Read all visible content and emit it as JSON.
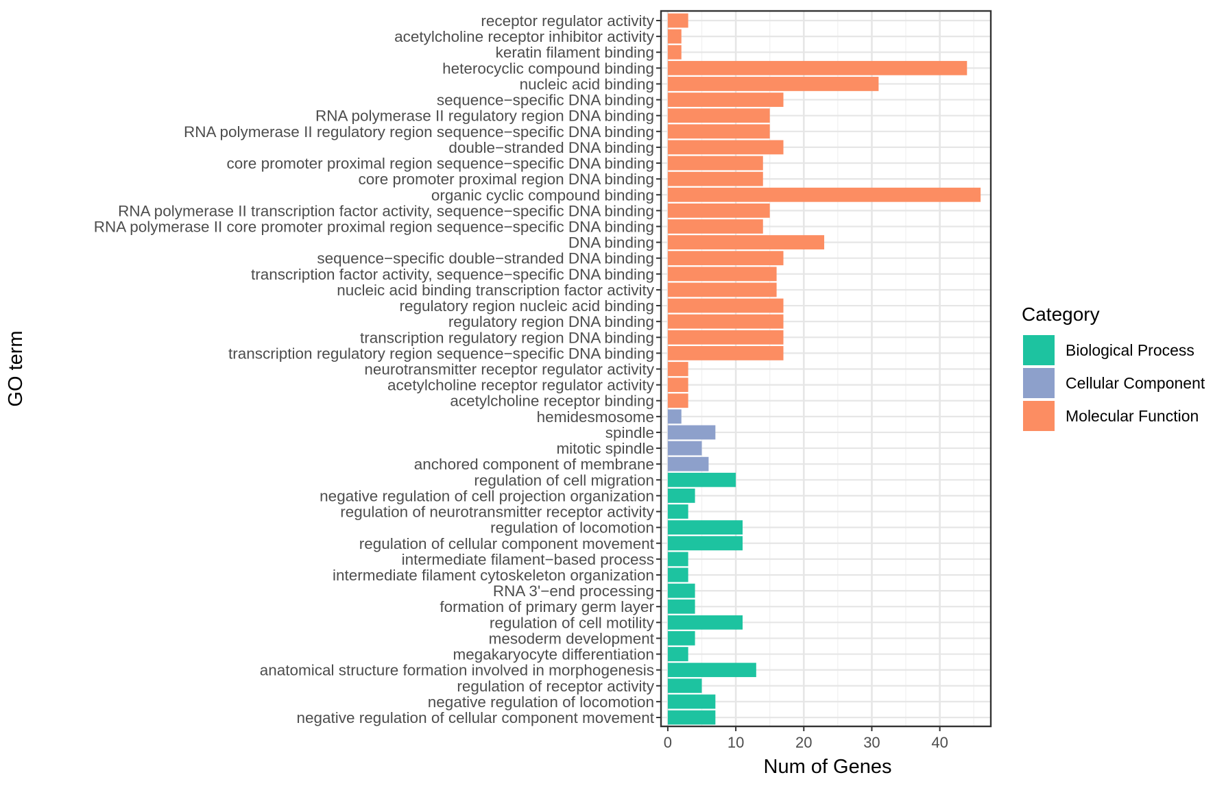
{
  "chart_data": {
    "type": "bar",
    "orientation": "horizontal",
    "xlabel": "Num of Genes",
    "ylabel": "GO term",
    "xlim": [
      -1,
      47.5
    ],
    "xticks": [
      0,
      10,
      20,
      30,
      40
    ],
    "grid": true,
    "legend": {
      "title": "Category",
      "position": "right",
      "entries": [
        {
          "label": "Biological Process",
          "color": "#1dc3a0"
        },
        {
          "label": "Cellular Component",
          "color": "#8da0cb"
        },
        {
          "label": "Molecular Function",
          "color": "#fc8d62"
        }
      ]
    },
    "bars": [
      {
        "term": "receptor regulator activity",
        "value": 3,
        "category": "Molecular Function"
      },
      {
        "term": "acetylcholine receptor inhibitor activity",
        "value": 2,
        "category": "Molecular Function"
      },
      {
        "term": "keratin filament binding",
        "value": 2,
        "category": "Molecular Function"
      },
      {
        "term": "heterocyclic compound binding",
        "value": 44,
        "category": "Molecular Function"
      },
      {
        "term": "nucleic acid binding",
        "value": 31,
        "category": "Molecular Function"
      },
      {
        "term": "sequence−specific DNA binding",
        "value": 17,
        "category": "Molecular Function"
      },
      {
        "term": "RNA polymerase II regulatory region DNA binding",
        "value": 15,
        "category": "Molecular Function"
      },
      {
        "term": "RNA polymerase II regulatory region sequence−specific DNA binding",
        "value": 15,
        "category": "Molecular Function"
      },
      {
        "term": "double−stranded DNA binding",
        "value": 17,
        "category": "Molecular Function"
      },
      {
        "term": "core promoter proximal region sequence−specific DNA binding",
        "value": 14,
        "category": "Molecular Function"
      },
      {
        "term": "core promoter proximal region DNA binding",
        "value": 14,
        "category": "Molecular Function"
      },
      {
        "term": "organic cyclic compound binding",
        "value": 46,
        "category": "Molecular Function"
      },
      {
        "term": "RNA polymerase II transcription factor activity, sequence−specific DNA binding",
        "value": 15,
        "category": "Molecular Function"
      },
      {
        "term": "RNA polymerase II core promoter proximal region sequence−specific DNA binding",
        "value": 14,
        "category": "Molecular Function"
      },
      {
        "term": "DNA binding",
        "value": 23,
        "category": "Molecular Function"
      },
      {
        "term": "sequence−specific double−stranded DNA binding",
        "value": 17,
        "category": "Molecular Function"
      },
      {
        "term": "transcription factor activity, sequence−specific DNA binding",
        "value": 16,
        "category": "Molecular Function"
      },
      {
        "term": "nucleic acid binding transcription factor activity",
        "value": 16,
        "category": "Molecular Function"
      },
      {
        "term": "regulatory region nucleic acid binding",
        "value": 17,
        "category": "Molecular Function"
      },
      {
        "term": "regulatory region DNA binding",
        "value": 17,
        "category": "Molecular Function"
      },
      {
        "term": "transcription regulatory region DNA binding",
        "value": 17,
        "category": "Molecular Function"
      },
      {
        "term": "transcription regulatory region sequence−specific DNA binding",
        "value": 17,
        "category": "Molecular Function"
      },
      {
        "term": "neurotransmitter receptor regulator activity",
        "value": 3,
        "category": "Molecular Function"
      },
      {
        "term": "acetylcholine receptor regulator activity",
        "value": 3,
        "category": "Molecular Function"
      },
      {
        "term": "acetylcholine receptor binding",
        "value": 3,
        "category": "Molecular Function"
      },
      {
        "term": "hemidesmosome",
        "value": 2,
        "category": "Cellular Component"
      },
      {
        "term": "spindle",
        "value": 7,
        "category": "Cellular Component"
      },
      {
        "term": "mitotic spindle",
        "value": 5,
        "category": "Cellular Component"
      },
      {
        "term": "anchored component of membrane",
        "value": 6,
        "category": "Cellular Component"
      },
      {
        "term": "regulation of cell migration",
        "value": 10,
        "category": "Biological Process"
      },
      {
        "term": "negative regulation of cell projection organization",
        "value": 4,
        "category": "Biological Process"
      },
      {
        "term": "regulation of neurotransmitter receptor activity",
        "value": 3,
        "category": "Biological Process"
      },
      {
        "term": "regulation of locomotion",
        "value": 11,
        "category": "Biological Process"
      },
      {
        "term": "regulation of cellular component movement",
        "value": 11,
        "category": "Biological Process"
      },
      {
        "term": "intermediate filament−based process",
        "value": 3,
        "category": "Biological Process"
      },
      {
        "term": "intermediate filament cytoskeleton organization",
        "value": 3,
        "category": "Biological Process"
      },
      {
        "term": "RNA 3'−end processing",
        "value": 4,
        "category": "Biological Process"
      },
      {
        "term": "formation of primary germ layer",
        "value": 4,
        "category": "Biological Process"
      },
      {
        "term": "regulation of cell motility",
        "value": 11,
        "category": "Biological Process"
      },
      {
        "term": "mesoderm development",
        "value": 4,
        "category": "Biological Process"
      },
      {
        "term": "megakaryocyte differentiation",
        "value": 3,
        "category": "Biological Process"
      },
      {
        "term": "anatomical structure formation involved in morphogenesis",
        "value": 13,
        "category": "Biological Process"
      },
      {
        "term": "regulation of receptor activity",
        "value": 5,
        "category": "Biological Process"
      },
      {
        "term": "negative regulation of locomotion",
        "value": 7,
        "category": "Biological Process"
      },
      {
        "term": "negative regulation of cellular component movement",
        "value": 7,
        "category": "Biological Process"
      }
    ]
  }
}
